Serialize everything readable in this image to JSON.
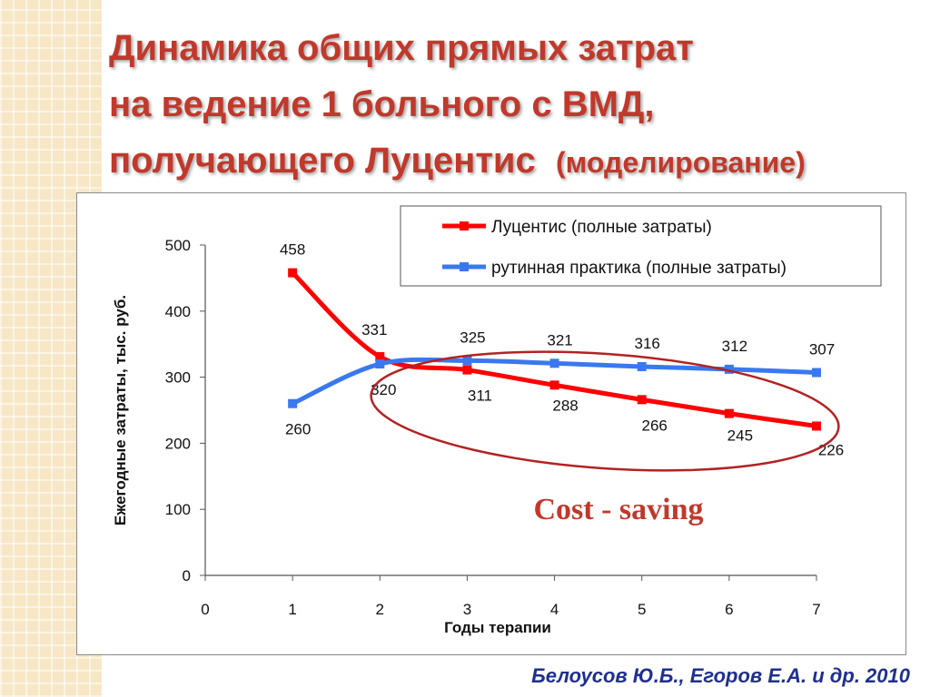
{
  "title": {
    "line1": "Динамика общих прямых затрат",
    "line2": "на ведение 1 больного с ВМД,",
    "line3_main": "получающего Луцентис",
    "line3_sub": "(моделирование)"
  },
  "annotation": "Cost - saving",
  "citation": "Белоусов Ю.Б., Егоров Е.А. и др. 2010",
  "colors": {
    "title": "#c0392b",
    "lucentis": "#ff0000",
    "routine": "#3a78f0",
    "annotation": "#c0392b",
    "ellipse": "#b22222",
    "citation": "#1f2f8f"
  },
  "chart_data": {
    "type": "line",
    "xlabel": "Годы терапии",
    "ylabel": "Ежегодные  затраты, тыс. руб.",
    "xlim": [
      0,
      7
    ],
    "ylim": [
      0,
      500
    ],
    "x_ticks": [
      "0",
      "1",
      "2",
      "3",
      "4",
      "5",
      "6",
      "7"
    ],
    "y_ticks": [
      "0",
      "100",
      "200",
      "300",
      "400",
      "500"
    ],
    "grid": false,
    "legend_position": "top-right",
    "x": [
      1,
      2,
      3,
      4,
      5,
      6,
      7
    ],
    "series": [
      {
        "name": "Луцентис (полные затраты)",
        "values": [
          458,
          331,
          311,
          288,
          266,
          245,
          226
        ],
        "labels": [
          "458",
          "331",
          "311",
          "288",
          "266",
          "245",
          "226"
        ]
      },
      {
        "name": "рутинная практика (полные затраты)",
        "values": [
          260,
          320,
          325,
          321,
          316,
          312,
          307
        ],
        "labels": [
          "260",
          "320",
          "325",
          "321",
          "316",
          "312",
          "307"
        ]
      }
    ]
  }
}
